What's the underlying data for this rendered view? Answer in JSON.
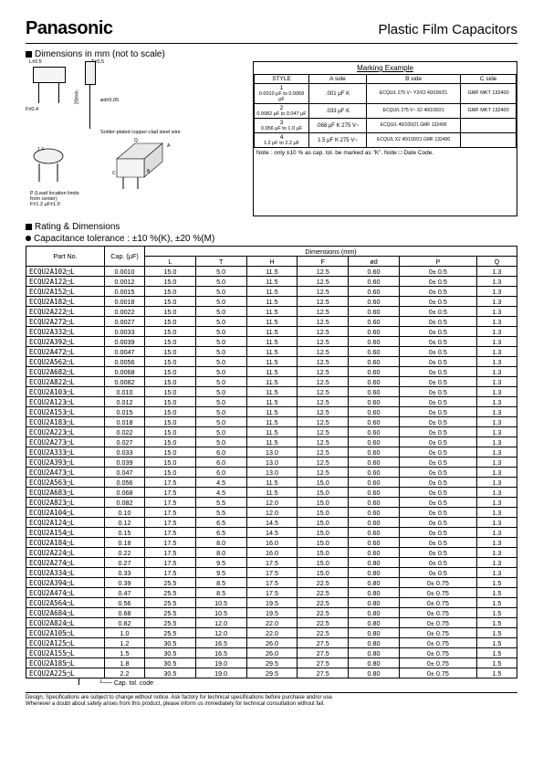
{
  "header": {
    "brand": "Panasonic",
    "title": "Plastic Film Capacitors"
  },
  "section_dimensions": "Dimensions in mm (not to scale)",
  "section_rating": "Rating & Dimensions",
  "tolerance_note": "Capacitance tolerance : ±10 %(K), ±20 %(M)",
  "marking": {
    "title": "Marking Example",
    "col_style": "STYLE",
    "col_a": "A side",
    "col_b": "B side",
    "col_c": "C side",
    "rows": [
      {
        "style": "1",
        "range": "0.0010 μF to 0.0068 μF",
        "a": ".001 μF   K",
        "b": "ECQU/L 275 V~ Y2/X2 40/100/21",
        "c": "GMF MKT 132400"
      },
      {
        "style": "2",
        "range": "0.0082 μF to 0.047 μF",
        "a": ".033 μF   K",
        "b": "ECQU/L 275 V~ X2 40/100/21",
        "c": "GMF MKT 132400"
      },
      {
        "style": "3",
        "range": "0.056 μF to 1.0 μF",
        "a": ".068 μF   K 275 V~",
        "b": "ECQU/L 40/100/21 GMF 132400",
        "c": ""
      },
      {
        "style": "4",
        "range": "1.2 μF to 2.2 μF",
        "a": "1.5 μF   K 275 V~",
        "b": "ECQU/L X2 40/100/21 GMF 132400",
        "c": ""
      }
    ],
    "note": "Note : only ±10 % as cap. tol. be marked as \"K\". Note □ Date Code."
  },
  "diagram_labels": {
    "top_t": "T±0.5",
    "top_l": "L±0.5",
    "f": "F±0.4",
    "h_min": "20min.",
    "od": "ød±0.05",
    "wire": "Solder-plated copper-clad steel wire",
    "p_desc": "P (Lead location limits from center)",
    "q": "Q",
    "bottom": "F±1.2 μF±1.0"
  },
  "table": {
    "headers": {
      "part": "Part No.",
      "cap": "Cap. (μF)",
      "dims": "Dimensions (mm)",
      "L": "L",
      "T": "T",
      "H": "H",
      "F": "F",
      "od": "ød",
      "P": "P",
      "Q": "Q"
    },
    "rows": [
      {
        "p": "ECQU2A102□L",
        "c": "0.0010",
        "L": "15.0",
        "T": "5.0",
        "H": "11.5",
        "F": "12.5",
        "od": "0.60",
        "P": "0± 0.5",
        "Q": "1.3"
      },
      {
        "p": "ECQU2A122□L",
        "c": "0.0012",
        "L": "15.0",
        "T": "5.0",
        "H": "11.5",
        "F": "12.5",
        "od": "0.60",
        "P": "0± 0.5",
        "Q": "1.3"
      },
      {
        "p": "ECQU2A152□L",
        "c": "0.0015",
        "L": "15.0",
        "T": "5.0",
        "H": "11.5",
        "F": "12.5",
        "od": "0.60",
        "P": "0± 0.5",
        "Q": "1.3"
      },
      {
        "p": "ECQU2A182□L",
        "c": "0.0018",
        "L": "15.0",
        "T": "5.0",
        "H": "11.5",
        "F": "12.5",
        "od": "0.60",
        "P": "0± 0.5",
        "Q": "1.3"
      },
      {
        "p": "ECQU2A222□L",
        "c": "0.0022",
        "L": "15.0",
        "T": "5.0",
        "H": "11.5",
        "F": "12.5",
        "od": "0.60",
        "P": "0± 0.5",
        "Q": "1.3"
      },
      {
        "p": "ECQU2A272□L",
        "c": "0.0027",
        "L": "15.0",
        "T": "5.0",
        "H": "11.5",
        "F": "12.5",
        "od": "0.60",
        "P": "0± 0.5",
        "Q": "1.3"
      },
      {
        "p": "ECQU2A332□L",
        "c": "0.0033",
        "L": "15.0",
        "T": "5.0",
        "H": "11.5",
        "F": "12.5",
        "od": "0.60",
        "P": "0± 0.5",
        "Q": "1.3"
      },
      {
        "p": "ECQU2A392□L",
        "c": "0.0039",
        "L": "15.0",
        "T": "5.0",
        "H": "11.5",
        "F": "12.5",
        "od": "0.60",
        "P": "0± 0.5",
        "Q": "1.3"
      },
      {
        "p": "ECQU2A472□L",
        "c": "0.0047",
        "L": "15.0",
        "T": "5.0",
        "H": "11.5",
        "F": "12.5",
        "od": "0.60",
        "P": "0± 0.5",
        "Q": "1.3"
      },
      {
        "p": "ECQU2A562□L",
        "c": "0.0056",
        "L": "15.0",
        "T": "5.0",
        "H": "11.5",
        "F": "12.5",
        "od": "0.60",
        "P": "0± 0.5",
        "Q": "1.3"
      },
      {
        "p": "ECQU2A682□L",
        "c": "0.0068",
        "L": "15.0",
        "T": "5.0",
        "H": "11.5",
        "F": "12.5",
        "od": "0.60",
        "P": "0± 0.5",
        "Q": "1.3"
      },
      {
        "p": "ECQU2A822□L",
        "c": "0.0082",
        "L": "15.0",
        "T": "5.0",
        "H": "11.5",
        "F": "12.5",
        "od": "0.60",
        "P": "0± 0.5",
        "Q": "1.3"
      },
      {
        "p": "ECQU2A103□L",
        "c": "0.010",
        "L": "15.0",
        "T": "5.0",
        "H": "11.5",
        "F": "12.5",
        "od": "0.60",
        "P": "0± 0.5",
        "Q": "1.3"
      },
      {
        "p": "ECQU2A123□L",
        "c": "0.012",
        "L": "15.0",
        "T": "5.0",
        "H": "11.5",
        "F": "12.5",
        "od": "0.60",
        "P": "0± 0.5",
        "Q": "1.3"
      },
      {
        "p": "ECQU2A153□L",
        "c": "0.015",
        "L": "15.0",
        "T": "5.0",
        "H": "11.5",
        "F": "12.5",
        "od": "0.60",
        "P": "0± 0.5",
        "Q": "1.3"
      },
      {
        "p": "ECQU2A183□L",
        "c": "0.018",
        "L": "15.0",
        "T": "5.0",
        "H": "11.5",
        "F": "12.5",
        "od": "0.60",
        "P": "0± 0.5",
        "Q": "1.3"
      },
      {
        "p": "ECQU2A223□L",
        "c": "0.022",
        "L": "15.0",
        "T": "5.0",
        "H": "11.5",
        "F": "12.5",
        "od": "0.60",
        "P": "0± 0.5",
        "Q": "1.3"
      },
      {
        "p": "ECQU2A273□L",
        "c": "0.027",
        "L": "15.0",
        "T": "5.0",
        "H": "11.5",
        "F": "12.5",
        "od": "0.60",
        "P": "0± 0.5",
        "Q": "1.3"
      },
      {
        "p": "ECQU2A333□L",
        "c": "0.033",
        "L": "15.0",
        "T": "6.0",
        "H": "13.0",
        "F": "12.5",
        "od": "0.60",
        "P": "0± 0.5",
        "Q": "1.3"
      },
      {
        "p": "ECQU2A393□L",
        "c": "0.039",
        "L": "15.0",
        "T": "6.0",
        "H": "13.0",
        "F": "12.5",
        "od": "0.60",
        "P": "0± 0.5",
        "Q": "1.3"
      },
      {
        "p": "ECQU2A473□L",
        "c": "0.047",
        "L": "15.0",
        "T": "6.0",
        "H": "13.0",
        "F": "12.5",
        "od": "0.60",
        "P": "0± 0.5",
        "Q": "1.3"
      },
      {
        "p": "ECQU2A563□L",
        "c": "0.056",
        "L": "17.5",
        "T": "4.5",
        "H": "11.5",
        "F": "15.0",
        "od": "0.60",
        "P": "0± 0.5",
        "Q": "1.3"
      },
      {
        "p": "ECQU2A683□L",
        "c": "0.068",
        "L": "17.5",
        "T": "4.5",
        "H": "11.5",
        "F": "15.0",
        "od": "0.60",
        "P": "0± 0.5",
        "Q": "1.3"
      },
      {
        "p": "ECQU2A823□L",
        "c": "0.082",
        "L": "17.5",
        "T": "5.5",
        "H": "12.0",
        "F": "15.0",
        "od": "0.60",
        "P": "0± 0.5",
        "Q": "1.3"
      },
      {
        "p": "ECQU2A104□L",
        "c": "0.10",
        "L": "17.5",
        "T": "5.5",
        "H": "12.0",
        "F": "15.0",
        "od": "0.60",
        "P": "0± 0.5",
        "Q": "1.3"
      },
      {
        "p": "ECQU2A124□L",
        "c": "0.12",
        "L": "17.5",
        "T": "6.5",
        "H": "14.5",
        "F": "15.0",
        "od": "0.60",
        "P": "0± 0.5",
        "Q": "1.3"
      },
      {
        "p": "ECQU2A154□L",
        "c": "0.15",
        "L": "17.5",
        "T": "6.5",
        "H": "14.5",
        "F": "15.0",
        "od": "0.60",
        "P": "0± 0.5",
        "Q": "1.3"
      },
      {
        "p": "ECQU2A184□L",
        "c": "0.18",
        "L": "17.5",
        "T": "8.0",
        "H": "16.0",
        "F": "15.0",
        "od": "0.60",
        "P": "0± 0.5",
        "Q": "1.3"
      },
      {
        "p": "ECQU2A224□L",
        "c": "0.22",
        "L": "17.5",
        "T": "8.0",
        "H": "16.0",
        "F": "15.0",
        "od": "0.60",
        "P": "0± 0.5",
        "Q": "1.3"
      },
      {
        "p": "ECQU2A274□L",
        "c": "0.27",
        "L": "17.5",
        "T": "9.5",
        "H": "17.5",
        "F": "15.0",
        "od": "0.80",
        "P": "0± 0.5",
        "Q": "1.3"
      },
      {
        "p": "ECQU2A334□L",
        "c": "0.33",
        "L": "17.5",
        "T": "9.5",
        "H": "17.5",
        "F": "15.0",
        "od": "0.80",
        "P": "0± 0.5",
        "Q": "1.3"
      },
      {
        "p": "ECQU2A394□L",
        "c": "0.39",
        "L": "25.5",
        "T": "8.5",
        "H": "17.5",
        "F": "22.5",
        "od": "0.80",
        "P": "0± 0.75",
        "Q": "1.5"
      },
      {
        "p": "ECQU2A474□L",
        "c": "0.47",
        "L": "25.5",
        "T": "8.5",
        "H": "17.5",
        "F": "22.5",
        "od": "0.80",
        "P": "0± 0.75",
        "Q": "1.5"
      },
      {
        "p": "ECQU2A564□L",
        "c": "0.56",
        "L": "25.5",
        "T": "10.5",
        "H": "19.5",
        "F": "22.5",
        "od": "0.80",
        "P": "0± 0.75",
        "Q": "1.5"
      },
      {
        "p": "ECQU2A684□L",
        "c": "0.68",
        "L": "25.5",
        "T": "10.5",
        "H": "19.5",
        "F": "22.5",
        "od": "0.80",
        "P": "0± 0.75",
        "Q": "1.5"
      },
      {
        "p": "ECQU2A824□L",
        "c": "0.82",
        "L": "25.5",
        "T": "12.0",
        "H": "22.0",
        "F": "22.5",
        "od": "0.80",
        "P": "0± 0.75",
        "Q": "1.5"
      },
      {
        "p": "ECQU2A105□L",
        "c": "1.0",
        "L": "25.5",
        "T": "12.0",
        "H": "22.0",
        "F": "22.5",
        "od": "0.80",
        "P": "0± 0.75",
        "Q": "1.5"
      },
      {
        "p": "ECQU2A125□L",
        "c": "1.2",
        "L": "30.5",
        "T": "16.5",
        "H": "26.0",
        "F": "27.5",
        "od": "0.80",
        "P": "0± 0.75",
        "Q": "1.5"
      },
      {
        "p": "ECQU2A155□L",
        "c": "1.5",
        "L": "30.5",
        "T": "16.5",
        "H": "26.0",
        "F": "27.5",
        "od": "0.80",
        "P": "0± 0.75",
        "Q": "1.5"
      },
      {
        "p": "ECQU2A185□L",
        "c": "1.8",
        "L": "30.5",
        "T": "19.0",
        "H": "29.5",
        "F": "27.5",
        "od": "0.80",
        "P": "0± 0.75",
        "Q": "1.5"
      },
      {
        "p": "ECQU2A225□L",
        "c": "2.2",
        "L": "30.5",
        "T": "19.0",
        "H": "29.5",
        "F": "27.5",
        "od": "0.80",
        "P": "0± 0.75",
        "Q": "1.5"
      }
    ]
  },
  "cap_tol_label": "Cap. tol. code",
  "footer": {
    "l1": "Design, Specifications are subject to change without notice.     Ask factory for technical specifications before purchase and/or use.",
    "l2": "Whenever a doubt about safety arises from this product, please inform us immediately for technical consultation without fail."
  }
}
